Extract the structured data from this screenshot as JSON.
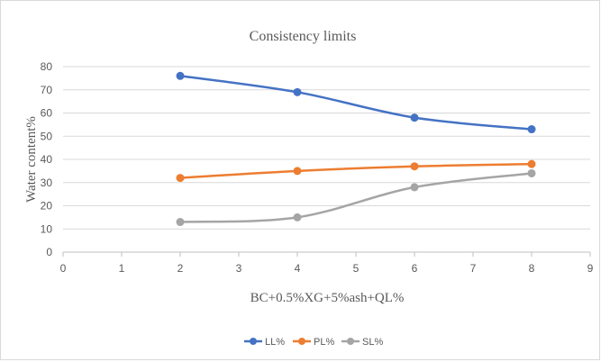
{
  "chart_data": {
    "type": "line",
    "title": "Consistency limits",
    "xlabel": "BC+0.5%XG+5%ash+QL%",
    "ylabel": "Water content%",
    "xlim": [
      0,
      9
    ],
    "ylim": [
      0,
      80
    ],
    "x_ticks": [
      0,
      1,
      2,
      3,
      4,
      5,
      6,
      7,
      8,
      9
    ],
    "y_ticks": [
      0,
      10,
      20,
      30,
      40,
      50,
      60,
      70,
      80
    ],
    "grid": "horizontal",
    "legend_position": "bottom",
    "smooth": true,
    "series": [
      {
        "name": "LL%",
        "color": "#4472c4",
        "x": [
          2,
          4,
          6,
          8
        ],
        "y": [
          76,
          69,
          58,
          53
        ]
      },
      {
        "name": "PL%",
        "color": "#ed7d31",
        "x": [
          2,
          4,
          6,
          8
        ],
        "y": [
          32,
          35,
          37,
          38
        ]
      },
      {
        "name": "SL%",
        "color": "#a5a5a5",
        "x": [
          2,
          4,
          6,
          8
        ],
        "y": [
          13,
          15,
          28,
          34
        ]
      }
    ]
  }
}
